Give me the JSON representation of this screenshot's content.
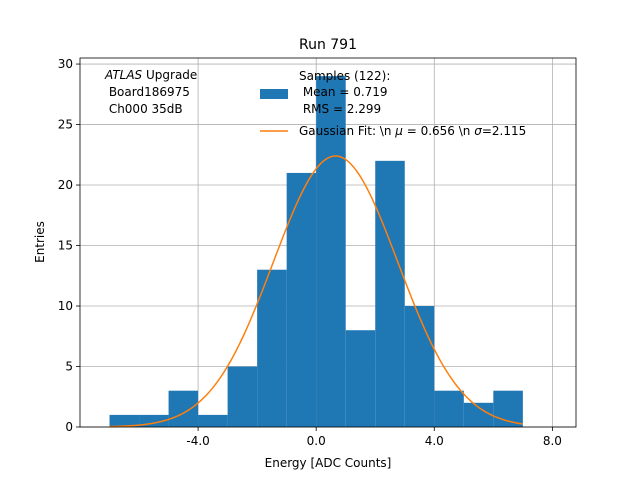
{
  "chart_data": {
    "type": "bar",
    "title": "Run 791",
    "xlabel": "Energy [ADC Counts]",
    "ylabel": "Entries",
    "xlim": [
      -8.0,
      8.8
    ],
    "ylim": [
      0,
      30.5
    ],
    "xticks": [
      -4.0,
      0.0,
      4.0,
      8.0
    ],
    "xtick_labels": [
      "-4.0",
      "0.0",
      "4.0",
      "8.0"
    ],
    "yticks": [
      0,
      5,
      10,
      15,
      20,
      25,
      30
    ],
    "ytick_labels": [
      "0",
      "5",
      "10",
      "15",
      "20",
      "25",
      "30"
    ],
    "grid": true,
    "bins": [
      {
        "x0": -7,
        "x1": -6,
        "count": 1
      },
      {
        "x0": -6,
        "x1": -5,
        "count": 1
      },
      {
        "x0": -5,
        "x1": -4,
        "count": 3
      },
      {
        "x0": -4,
        "x1": -3,
        "count": 1
      },
      {
        "x0": -3,
        "x1": -2,
        "count": 5
      },
      {
        "x0": -2,
        "x1": -1,
        "count": 13
      },
      {
        "x0": -1,
        "x1": 0,
        "count": 21
      },
      {
        "x0": 0,
        "x1": 1,
        "count": 29
      },
      {
        "x0": 1,
        "x1": 2,
        "count": 8
      },
      {
        "x0": 2,
        "x1": 3,
        "count": 22
      },
      {
        "x0": 3,
        "x1": 4,
        "count": 10
      },
      {
        "x0": 4,
        "x1": 5,
        "count": 3
      },
      {
        "x0": 5,
        "x1": 6,
        "count": 2
      },
      {
        "x0": 6,
        "x1": 7,
        "count": 3
      }
    ],
    "fit": {
      "mu": 0.656,
      "sigma": 2.115,
      "amplitude": 22.4,
      "x_range": [
        -7,
        7
      ]
    },
    "annotation": {
      "italic": "ATLAS",
      "line1_rest": " Upgrade",
      "line2": " Board186975",
      "line3": " Ch000 35dB"
    },
    "legend": {
      "location": "top-center",
      "histogram_label_lines": [
        "Samples (122):",
        " Mean = 0.719",
        " RMS = 2.299"
      ],
      "fit_label_prefix": "Gaussian Fit: \\n ",
      "fit_label_mu_text": " = 0.656 \\n ",
      "fit_label_sigma_text": "=2.115"
    },
    "colors": {
      "bar": "#1f77b4",
      "fit": "#ff7f0e",
      "grid": "#b0b0b0"
    }
  }
}
